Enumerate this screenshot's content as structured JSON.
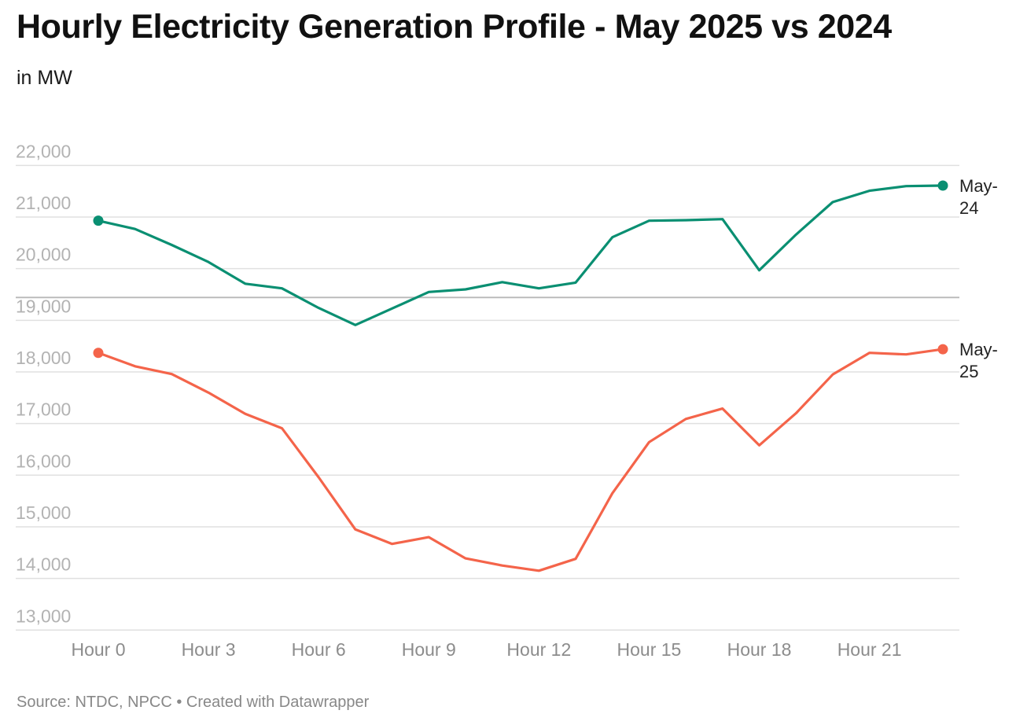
{
  "header": {
    "title": "Hourly Electricity Generation Profile - May 2025 vs 2024",
    "subtitle": "in MW"
  },
  "footer": {
    "source": "Source: NTDC, NPCC • Created with Datawrapper"
  },
  "chart_data": {
    "type": "line",
    "title": "Hourly Electricity Generation Profile - May 2025 vs 2024",
    "ylabel": "in MW",
    "xlabel": "",
    "x": [
      0,
      1,
      2,
      3,
      4,
      5,
      6,
      7,
      8,
      9,
      10,
      11,
      12,
      13,
      14,
      15,
      16,
      17,
      18,
      19,
      20,
      21,
      22,
      23
    ],
    "x_ticks": [
      {
        "x": 0,
        "label": "Hour 0"
      },
      {
        "x": 3,
        "label": "Hour 3"
      },
      {
        "x": 6,
        "label": "Hour 6"
      },
      {
        "x": 9,
        "label": "Hour 9"
      },
      {
        "x": 12,
        "label": "Hour 12"
      },
      {
        "x": 15,
        "label": "Hour 15"
      },
      {
        "x": 18,
        "label": "Hour 18"
      },
      {
        "x": 21,
        "label": "Hour 21"
      }
    ],
    "y_ticks": [
      {
        "v": 22000,
        "label": "22,000"
      },
      {
        "v": 21000,
        "label": "21,000"
      },
      {
        "v": 20000,
        "label": "20,000"
      },
      {
        "v": 19000,
        "label": "19,000"
      },
      {
        "v": 18000,
        "label": "18,000"
      },
      {
        "v": 17000,
        "label": "17,000"
      },
      {
        "v": 16000,
        "label": "16,000"
      },
      {
        "v": 15000,
        "label": "15,000"
      },
      {
        "v": 14000,
        "label": "14,000"
      },
      {
        "v": 13000,
        "label": "13,000"
      }
    ],
    "ylim": [
      12730,
      22630
    ],
    "xlim": [
      0,
      23
    ],
    "grid": true,
    "series": [
      {
        "name": "May-24",
        "label_lines": [
          "May-",
          "24"
        ],
        "color": "#0a8f72",
        "values": [
          20640,
          20480,
          20170,
          19840,
          19420,
          19330,
          18950,
          18620,
          18940,
          19260,
          19310,
          19450,
          19330,
          19440,
          20320,
          20640,
          20650,
          20670,
          19680,
          20370,
          21000,
          21220,
          21310,
          21320
        ]
      },
      {
        "name": "May-25",
        "label_lines": [
          "May-",
          "25"
        ],
        "color": "#f4644a",
        "values": [
          18080,
          17820,
          17670,
          17310,
          16900,
          16620,
          15670,
          14660,
          14380,
          14510,
          14100,
          13960,
          13860,
          14090,
          15360,
          16350,
          16800,
          17000,
          16290,
          16910,
          17660,
          18080,
          18050,
          18150
        ]
      }
    ],
    "highlight_gridline": 19000
  }
}
